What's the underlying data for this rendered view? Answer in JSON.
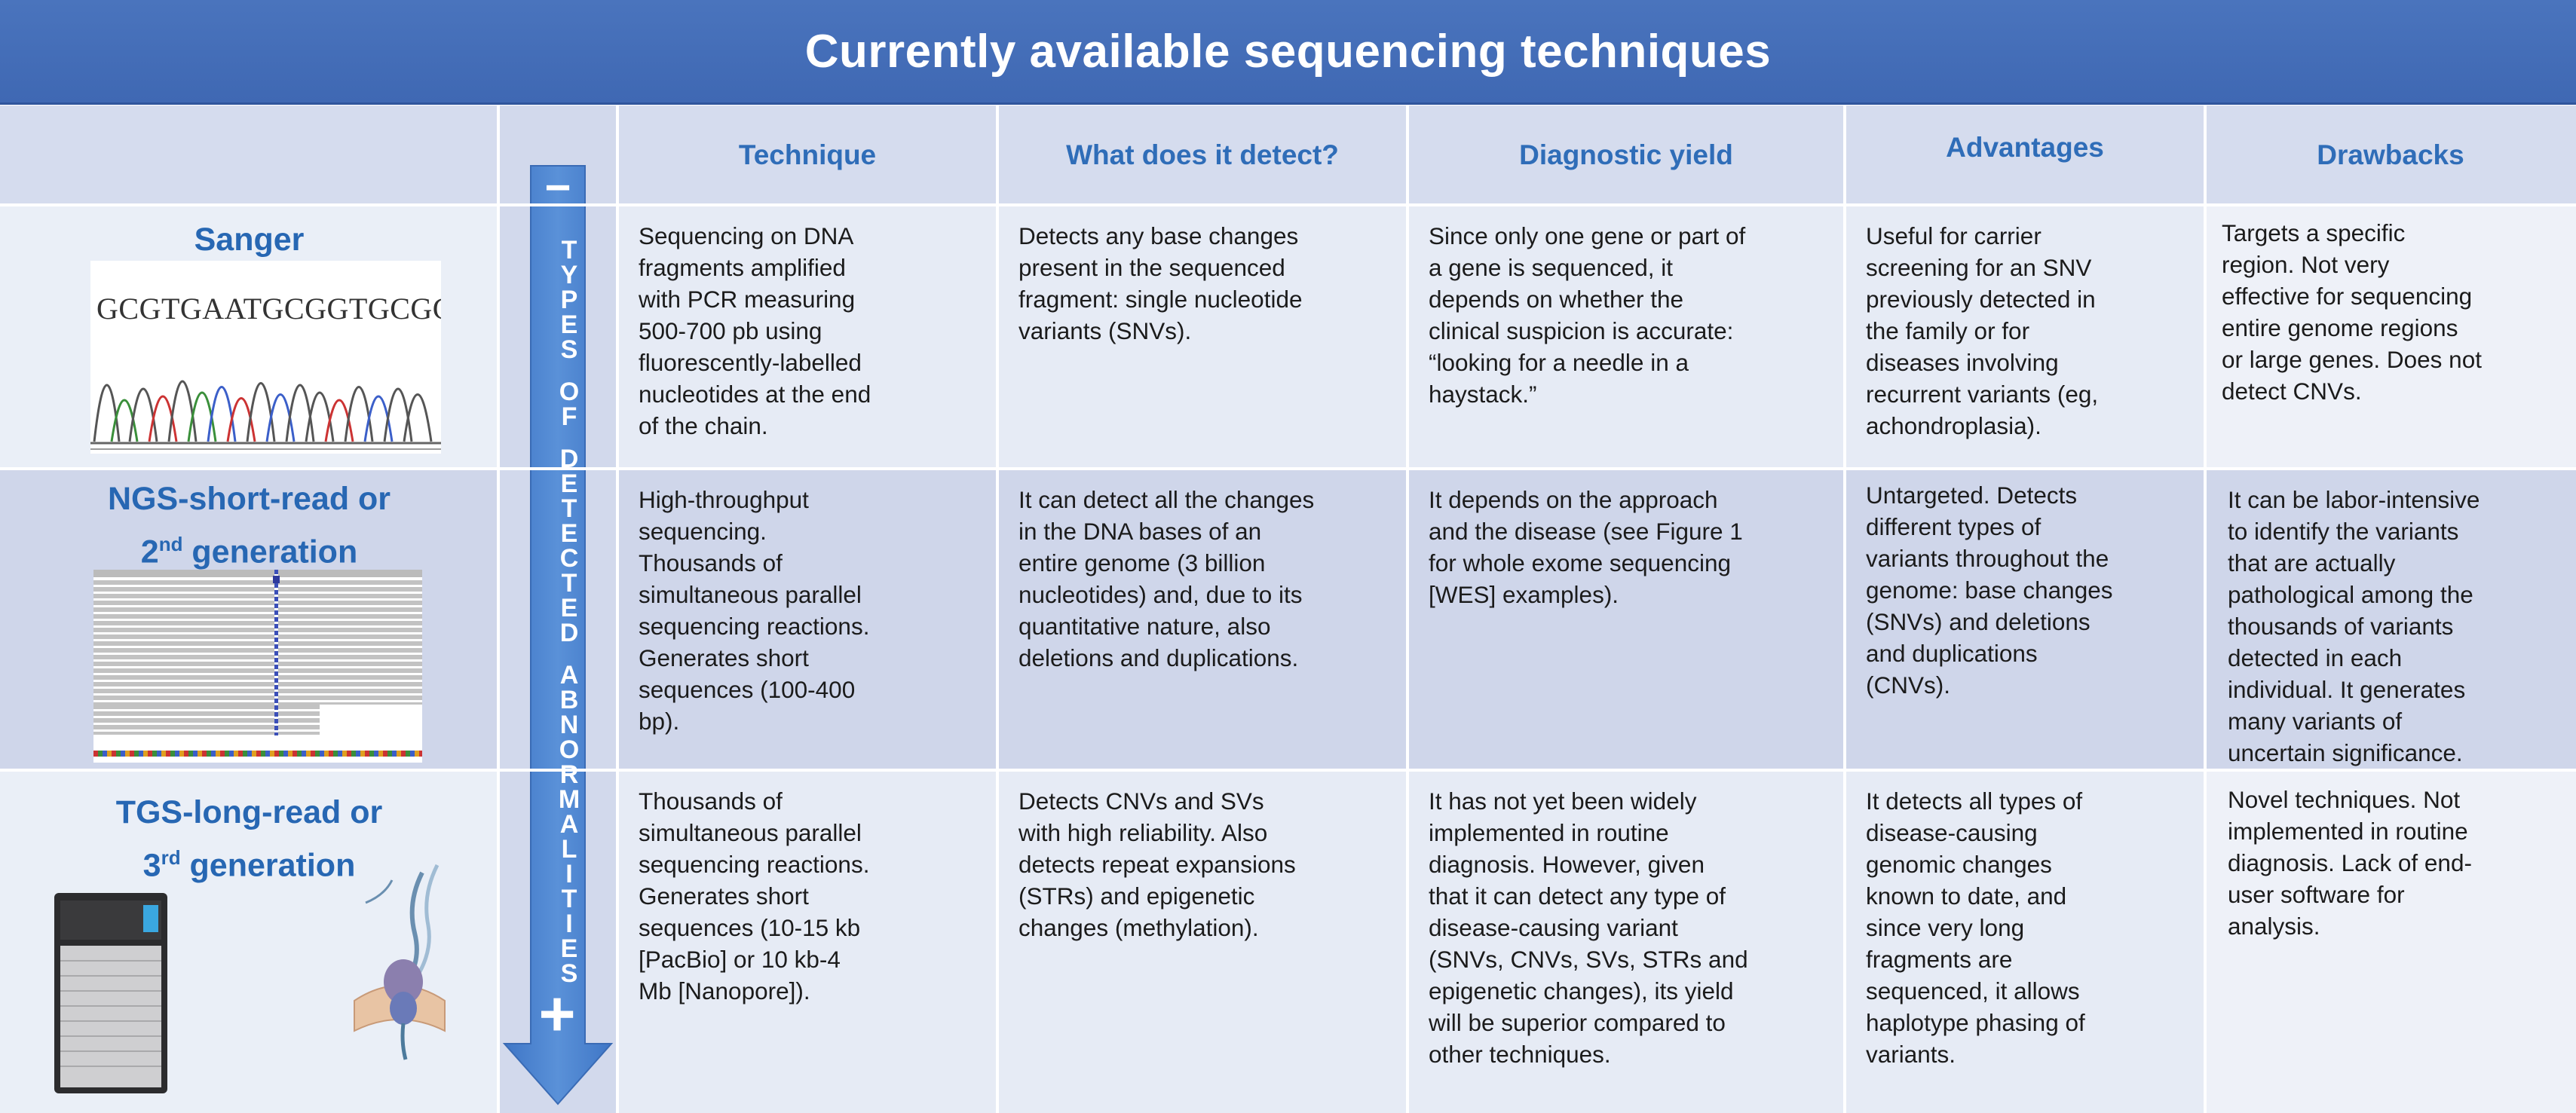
{
  "title": "Currently available sequencing techniques",
  "headers": {
    "technique": "Technique",
    "detect": "What does it detect?",
    "yield": "Diagnostic yield",
    "advantages": "Advantages",
    "drawbacks": "Drawbacks"
  },
  "arrow": {
    "minus": "−",
    "plus": "+",
    "letters": [
      "T",
      "Y",
      "P",
      "E",
      "S",
      "",
      "O",
      "F",
      "",
      "D",
      "E",
      "T",
      "E",
      "C",
      "T",
      "E",
      "D",
      "",
      "A",
      "B",
      "N",
      "O",
      "R",
      "M",
      "A",
      "L",
      "I",
      "T",
      "I",
      "E",
      "S"
    ]
  },
  "rows": [
    {
      "label_lines": [
        "Sanger"
      ],
      "technique": [
        "Sequencing on DNA",
        "fragments amplified",
        "with PCR measuring",
        "500-700 pb using",
        "fluorescently-labelled",
        "nucleotides at the end",
        "of the chain."
      ],
      "detect": [
        "Detects any base changes",
        "present in the sequenced",
        "fragment: single nucleotide",
        "variants (SNVs)."
      ],
      "yield": [
        "Since only one gene or part of",
        "a gene is sequenced, it",
        "depends on whether the",
        "clinical suspicion is accurate:",
        "“looking for a needle in a",
        "haystack.”"
      ],
      "advantages": [
        "Useful for carrier",
        "screening for an SNV",
        "previously detected in",
        "the family or for",
        "diseases involving",
        "recurrent variants (eg,",
        "achondroplasia)."
      ],
      "drawbacks": [
        "Targets a specific",
        "region. Not very",
        "effective for sequencing",
        "entire genome regions",
        "or large genes. Does not",
        "detect CNVs."
      ]
    },
    {
      "label_lines": [
        "NGS-short-read or",
        "2",
        "nd",
        " generation"
      ],
      "technique": [
        "High-throughput",
        "sequencing.",
        "Thousands of",
        "simultaneous parallel",
        "sequencing reactions.",
        "Generates short",
        "sequences (100-400",
        "bp)."
      ],
      "detect": [
        "It can detect all the changes",
        "in the DNA bases of an",
        "entire genome (3 billion",
        "nucleotides) and, due to its",
        "quantitative nature, also",
        "deletions and duplications."
      ],
      "yield": [
        "It depends on the approach",
        "and the disease (see Figure 1",
        "for whole exome sequencing",
        "[WES] examples)."
      ],
      "advantages": [
        "Untargeted. Detects",
        "different types of",
        "variants throughout the",
        "genome: base changes",
        "(SNVs) and deletions",
        "and duplications",
        "(CNVs)."
      ],
      "drawbacks": [
        "It can be labor-intensive",
        "to identify the variants",
        "that are actually",
        "pathological among the",
        "thousands of variants",
        "detected in each",
        "individual. It generates",
        "many variants of",
        "uncertain significance."
      ]
    },
    {
      "label_lines": [
        "TGS-long-read or",
        "3",
        "rd",
        " generation"
      ],
      "technique": [
        "Thousands of",
        "simultaneous parallel",
        "sequencing reactions.",
        "Generates short",
        "sequences (10-15 kb",
        "[PacBio] or 10 kb-4",
        "Mb [Nanopore])."
      ],
      "detect": [
        "Detects CNVs and SVs",
        "with high reliability. Also",
        "detects repeat expansions",
        "(STRs) and epigenetic",
        "changes (methylation)."
      ],
      "yield": [
        "It has not yet been widely",
        "implemented in routine",
        "diagnosis. However, given",
        "that it can detect any type of",
        "disease-causing variant",
        "(SNVs, CNVs, SVs, STRs and",
        "epigenetic changes), its yield",
        "will be superior compared to",
        "other techniques."
      ],
      "advantages": [
        "It detects all types of",
        "disease-causing",
        "genomic changes",
        "known to date, and",
        "since very long",
        "fragments are",
        "sequenced, it allows",
        "haplotype phasing of",
        "variants."
      ],
      "drawbacks": [
        "Novel techniques. Not",
        "implemented in routine",
        "diagnosis. Lack of end-",
        "user software for",
        "analysis."
      ]
    }
  ],
  "sanger_sequence": "GCGTGAATGCGGTGCGG",
  "colors": {
    "banner": "#4272ba",
    "header_text": "#2f6db8",
    "row_light": "#e5eaf5",
    "row_mid": "#cfd6ea",
    "header_bg": "#d5dcee",
    "arrow": "#4a80cc"
  }
}
